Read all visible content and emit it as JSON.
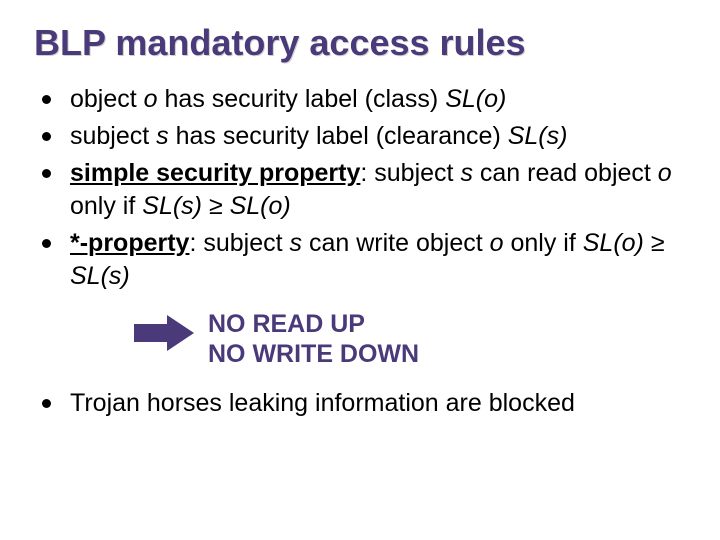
{
  "colors": {
    "title": "#4a3a7a",
    "body_text": "#000000",
    "bullet_dot": "#000000",
    "arrow_fill": "#4a3a7a",
    "statement": "#4a3a7a",
    "background": "#ffffff"
  },
  "typography": {
    "title_fontsize": 36,
    "body_fontsize": 25,
    "statement_fontsize": 25,
    "font_family": "Arial"
  },
  "title": "BLP mandatory access rules",
  "bullets_group1": [
    {
      "parts": [
        {
          "t": "object "
        },
        {
          "t": "o",
          "i": true
        },
        {
          "t": " has security label (class) "
        },
        {
          "t": "SL(o)",
          "i": true
        }
      ]
    },
    {
      "parts": [
        {
          "t": "subject "
        },
        {
          "t": "s",
          "i": true
        },
        {
          "t": " has security label (clearance) "
        },
        {
          "t": "SL(s)",
          "i": true
        }
      ]
    },
    {
      "parts": [
        {
          "t": "simple security property",
          "b": true,
          "u": true
        },
        {
          "t": ": subject "
        },
        {
          "t": "s",
          "i": true
        },
        {
          "t": " can read object "
        },
        {
          "t": "o",
          "i": true
        },
        {
          "t": " only if "
        },
        {
          "t": "SL(s) ≥ SL(o)",
          "i": true
        }
      ]
    },
    {
      "parts": [
        {
          "t": "*-property",
          "b": true,
          "u": true
        },
        {
          "t": ": subject "
        },
        {
          "t": "s",
          "i": true
        },
        {
          "t": " can write object "
        },
        {
          "t": "o",
          "i": true
        },
        {
          "t": " only if "
        },
        {
          "t": "SL(o) ≥ SL(s)",
          "i": true
        }
      ]
    }
  ],
  "statement": {
    "line1": "NO READ UP",
    "line2": "NO WRITE DOWN"
  },
  "bullets_group2": [
    {
      "parts": [
        {
          "t": "Trojan horses leaking information are blocked"
        }
      ]
    }
  ],
  "arrow": {
    "width": 60,
    "height": 36,
    "fill": "#4a3a7a"
  }
}
